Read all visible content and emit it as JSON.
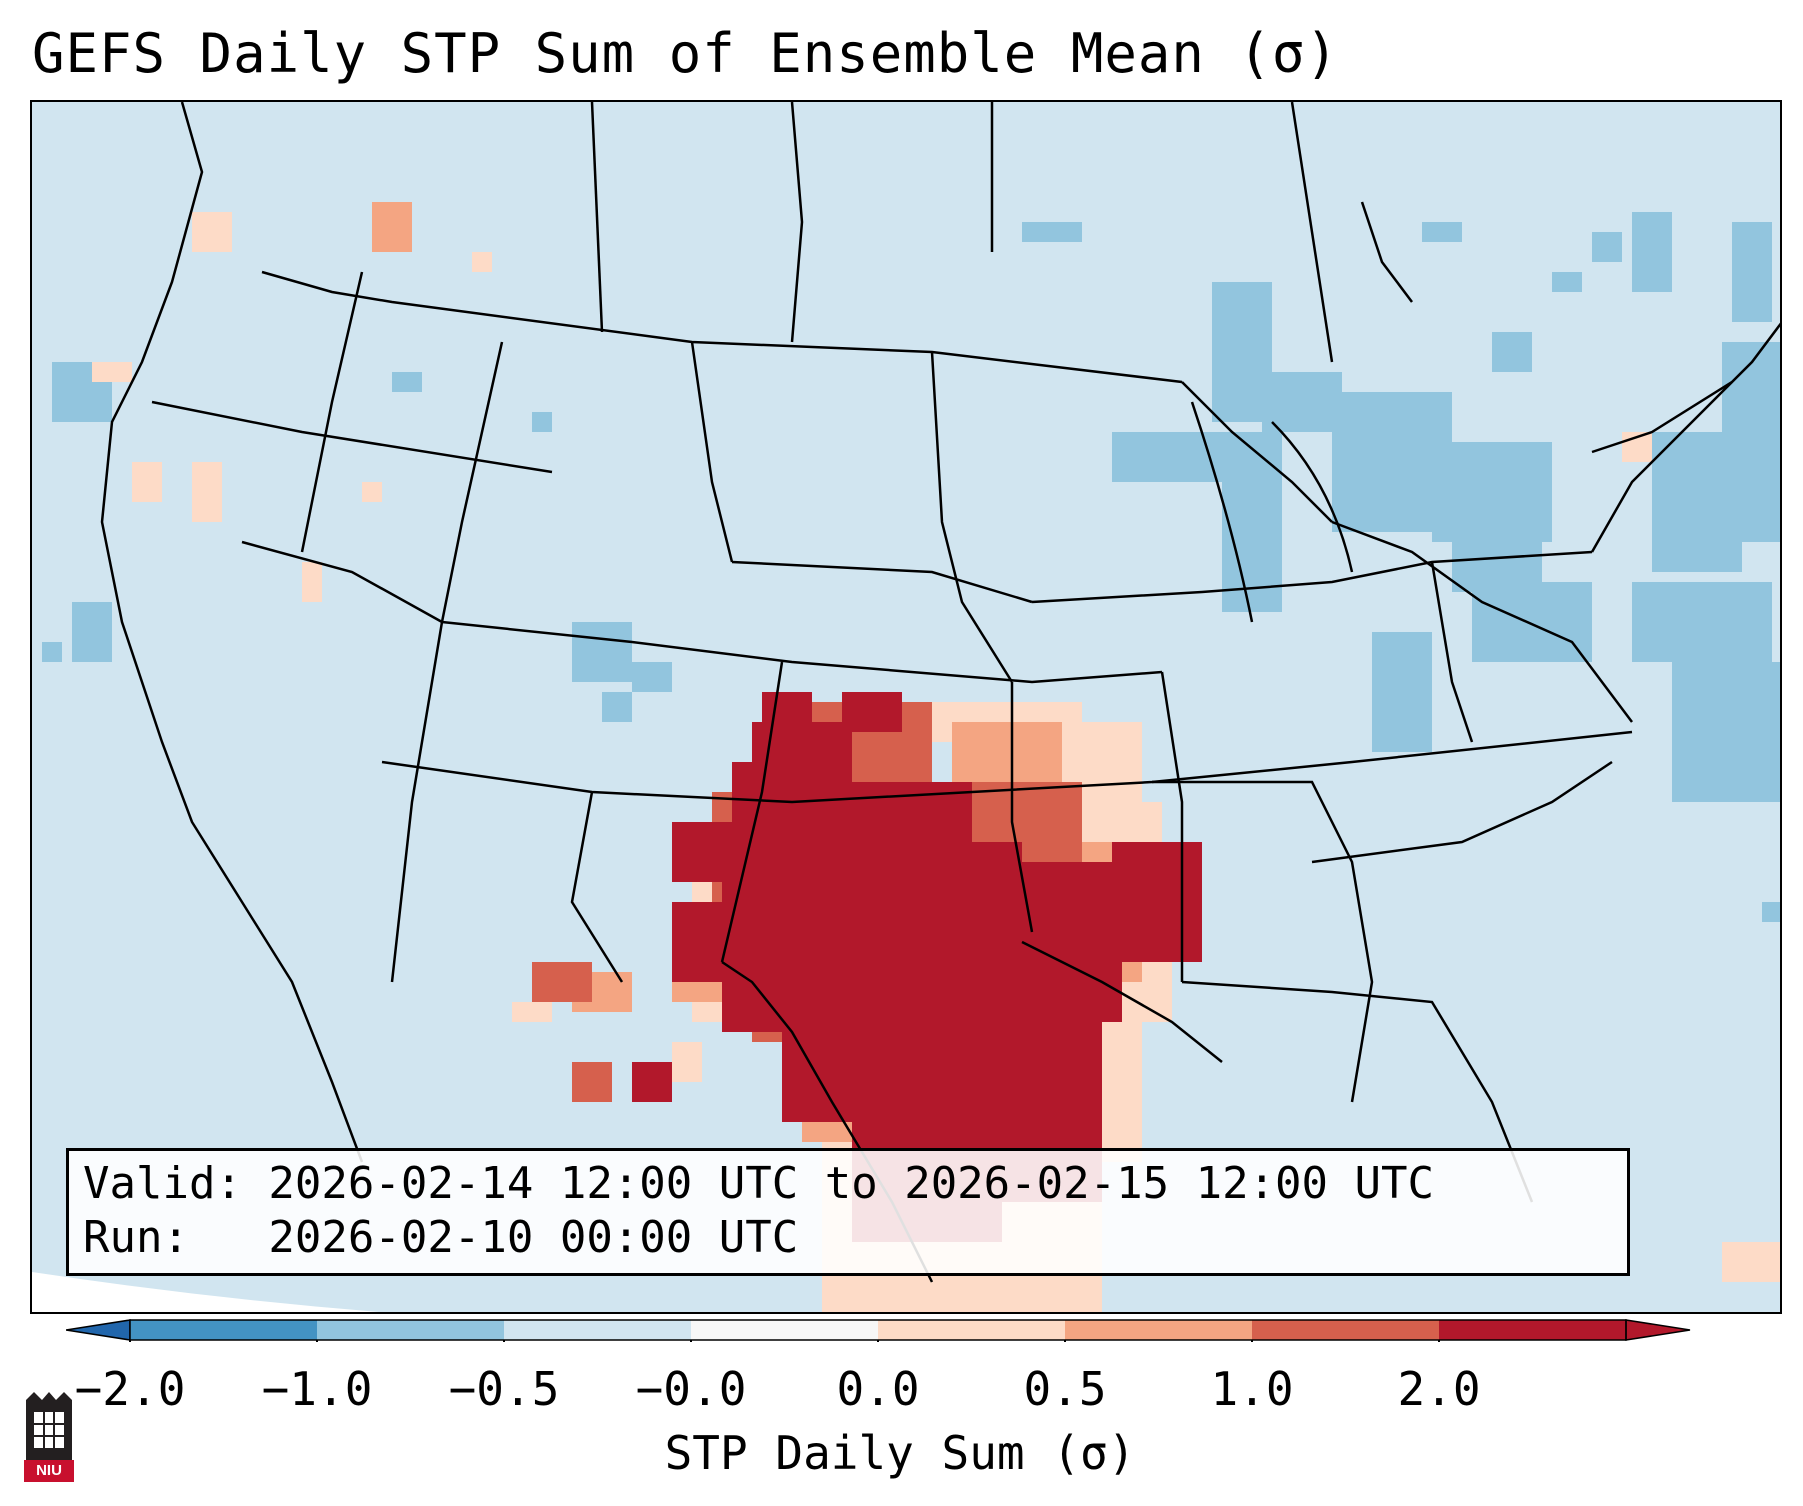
{
  "title": "GEFS Daily STP Sum of Ensemble Mean (σ)",
  "info": {
    "valid_line": "Valid: 2026-02-14 12:00 UTC to 2026-02-15 12:00 UTC",
    "run_line": "Run:   2026-02-10 00:00 UTC"
  },
  "colorbar": {
    "label": "STP Daily Sum (σ)",
    "ticks": [
      "−2.0",
      "−1.0",
      "−0.5",
      "−0.0",
      "0.0",
      "0.5",
      "1.0",
      "2.0"
    ],
    "colors": [
      "#4393c3",
      "#92c5de",
      "#d1e5f0",
      "#f7f7f7",
      "#fddbc7",
      "#f4a582",
      "#d6604d",
      "#b2182b"
    ],
    "under_color": "#2166ac",
    "over_color": "#b2182b"
  },
  "logo": {
    "text": "NIU",
    "icon": "university-tower-icon"
  },
  "map": {
    "background_color": "#d1e5f0",
    "region": "Continental United States",
    "max_anomaly_area": "Southern Plains / Texas / Louisiana"
  }
}
